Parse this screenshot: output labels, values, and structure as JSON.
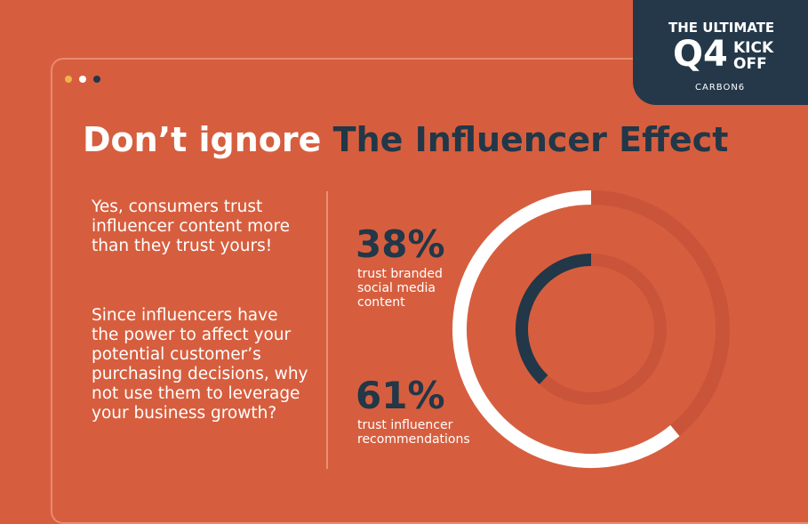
{
  "badge": {
    "line1": "THE ULTIMATE",
    "big": "Q4",
    "kick": "KICK",
    "off": "OFF",
    "brand": "CARBON6"
  },
  "heading": {
    "part1": "Don’t ignore",
    "part2": "The Influencer Effect"
  },
  "body": [
    "Yes, consumers trust influencer content more than they trust yours!",
    "Since influencers have the power to affect your potential customer’s purchasing decisions, why not use them to leverage your business growth?"
  ],
  "chart_data": {
    "type": "radial",
    "categories": [
      "trust branded social media content",
      "trust influencer recommendations"
    ],
    "values": [
      38,
      61
    ],
    "value_labels": [
      "38%",
      "61%"
    ],
    "colors": [
      "#223747",
      "#ffffff"
    ],
    "ylim": [
      0,
      100
    ]
  }
}
